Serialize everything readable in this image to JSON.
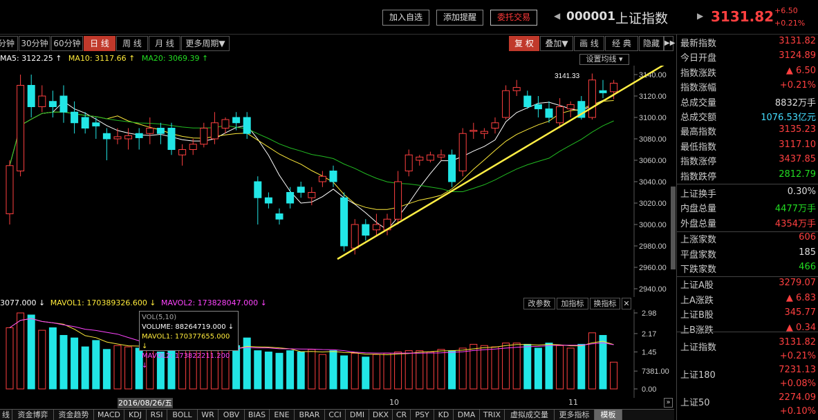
{
  "top": {
    "btn_add": "加入自选",
    "btn_alert": "添加提醒",
    "btn_order": "委托交易",
    "code": "000001",
    "name": "上证指数",
    "price": "3131.82",
    "change": "+6.50",
    "change_pct": "+0.21%"
  },
  "periods": [
    "分钟",
    "30分钟",
    "60分钟",
    "日 线",
    "周 线",
    "月 线",
    "更多周期▼"
  ],
  "right_btns": [
    "复 权",
    "叠加▼",
    "画 线",
    "经 典",
    "隐藏",
    "▶▶"
  ],
  "ma": {
    "ma5": "MA5: 3122.25 ↑",
    "ma10": "MA10: 3117.66 ↑",
    "ma20": "MA20: 3069.39 ↑",
    "set": "设置均线 ▾"
  },
  "vol": {
    "v": "3077.000 ↓",
    "m1": "MAVOL1: 170389326.600 ↓",
    "m2": "MAVOL2: 173828047.000 ↓",
    "btn1": "改参数",
    "btn2": "加指标",
    "btn3": "换指标",
    "close": "✕"
  },
  "tooltip": {
    "l1": "VOL(5,10)",
    "l2": "VOLUME: 88264719.000 ↓",
    "l3": "MAVOL1: 170377655.000 ↓",
    "l4": "MAVOL2: 173822211.200 ↓"
  },
  "price_axis": [
    "3140.00",
    "3120.00",
    "3100.00",
    "3080.00",
    "3060.00",
    "3040.00",
    "3020.00",
    "3000.00",
    "2980.00",
    "2960.00",
    "2940.00"
  ],
  "vol_axis": [
    "2.98",
    "2.17",
    "1.45",
    "7381.00",
    "0.00"
  ],
  "annot": "3141.33",
  "date_flag": "2016/08/26/五",
  "xlabels": [
    "10",
    "11"
  ],
  "tabs": [
    "线",
    "资金博弈",
    "资金趋势",
    "MACD",
    "KDJ",
    "RSI",
    "BOLL",
    "WR",
    "OBV",
    "BIAS",
    "ENE",
    "BRAR",
    "CCI",
    "DMI",
    "DKX",
    "CR",
    "PSY",
    "KD",
    "DMA",
    "TRIX",
    "虚拟成交量",
    "更多指标",
    "模板"
  ],
  "panel": [
    {
      "label": "最新指数",
      "value": "3131.82",
      "color": "#ff4040"
    },
    {
      "label": "今日开盘",
      "value": "3124.89",
      "color": "#ff4040"
    },
    {
      "label": "指数涨跌",
      "value": "▲ 6.50",
      "color": "#ff4040"
    },
    {
      "label": "指数涨幅",
      "value": "+0.21%",
      "color": "#ff4040"
    },
    {
      "label": "总成交量",
      "value": "8832万手",
      "color": "#dddddd"
    },
    {
      "label": "总成交额",
      "value": "1076.53亿元",
      "color": "#44ddff"
    },
    {
      "label": "最高指数",
      "value": "3135.23",
      "color": "#ff4040"
    },
    {
      "label": "最低指数",
      "value": "3117.10",
      "color": "#ff4040"
    },
    {
      "label": "指数涨停",
      "value": "3437.85",
      "color": "#ff4040"
    },
    {
      "label": "指数跌停",
      "value": "2812.79",
      "color": "#22dd22"
    },
    {
      "label": "上证换手",
      "value": "0.30%",
      "color": "#dddddd"
    },
    {
      "label": "内盘总量",
      "value": "4477万手",
      "color": "#22dd22"
    },
    {
      "label": "外盘总量",
      "value": "4354万手",
      "color": "#ff4040"
    },
    {
      "label": "上涨家数",
      "value": "606",
      "color": "#ff4040"
    },
    {
      "label": "平盘家数",
      "value": "185",
      "color": "#dddddd"
    },
    {
      "label": "下跌家数",
      "value": "466",
      "color": "#22dd22"
    },
    {
      "label": "上证A股",
      "value": "3279.07",
      "color": "#ff4040"
    },
    {
      "label": "上A涨跌",
      "value": "▲ 6.83",
      "color": "#ff4040"
    },
    {
      "label": "上证B股",
      "value": "345.77",
      "color": "#ff4040"
    },
    {
      "label": "上B涨跌",
      "value": "▲ 0.34",
      "color": "#ff4040"
    }
  ],
  "panel2": [
    {
      "label": "上证指数",
      "value": "3131.82",
      "pct": "+0.21%"
    },
    {
      "label": "上证180",
      "value": "7231.13",
      "pct": "+0.08%"
    },
    {
      "label": "上证50",
      "value": "2274.09",
      "pct": "+0.10%"
    }
  ],
  "chart_data": {
    "type": "candlestick",
    "candles": [
      [
        3010,
        3055,
        3000,
        3060
      ],
      [
        3050,
        3130,
        3045,
        3140
      ],
      [
        3130,
        3110,
        3100,
        3140
      ],
      [
        3110,
        3120,
        3105,
        3130
      ],
      [
        3115,
        3110,
        3100,
        3125
      ],
      [
        3120,
        3105,
        3095,
        3130
      ],
      [
        3105,
        3095,
        3085,
        3115
      ],
      [
        3100,
        3090,
        3085,
        3105
      ],
      [
        3095,
        3092,
        3080,
        3100
      ],
      [
        3085,
        3080,
        3060,
        3090
      ],
      [
        3080,
        3082,
        3075,
        3090
      ],
      [
        3080,
        3083,
        3070,
        3090
      ],
      [
        3085,
        3081,
        3070,
        3090
      ],
      [
        3085,
        3090,
        3075,
        3100
      ],
      [
        3090,
        3085,
        3075,
        3095
      ],
      [
        3090,
        3070,
        3065,
        3095
      ],
      [
        3065,
        3070,
        3055,
        3075
      ],
      [
        3070,
        3075,
        3065,
        3080
      ],
      [
        3075,
        3090,
        3072,
        3095
      ],
      [
        3080,
        3095,
        3075,
        3105
      ],
      [
        3090,
        3098,
        3085,
        3100
      ],
      [
        3100,
        3095,
        3088,
        3105
      ],
      [
        3100,
        3085,
        3080,
        3105
      ],
      [
        3040,
        3025,
        3000,
        3045
      ],
      [
        3025,
        3020,
        3015,
        3030
      ],
      [
        3010,
        3005,
        3000,
        3015
      ],
      [
        3030,
        3020,
        3015,
        3035
      ],
      [
        3035,
        3030,
        3025,
        3040
      ],
      [
        3025,
        3030,
        3018,
        3035
      ],
      [
        3040,
        3045,
        3035,
        3050
      ],
      [
        3050,
        3040,
        3035,
        3055
      ],
      [
        3025,
        2980,
        2975,
        3030
      ],
      [
        2978,
        3000,
        2972,
        3005
      ],
      [
        3000,
        2990,
        2985,
        3005
      ],
      [
        2995,
        3000,
        2990,
        3010
      ],
      [
        2995,
        3005,
        2990,
        3010
      ],
      [
        3005,
        3040,
        3000,
        3050
      ],
      [
        3050,
        3065,
        3045,
        3070
      ],
      [
        3060,
        3063,
        3055,
        3065
      ],
      [
        3060,
        3065,
        3058,
        3068
      ],
      [
        3063,
        3065,
        3060,
        3070
      ],
      [
        3065,
        3040,
        3035,
        3070
      ],
      [
        3050,
        3085,
        3045,
        3090
      ],
      [
        3087,
        3088,
        3080,
        3095
      ],
      [
        3085,
        3087,
        3080,
        3090
      ],
      [
        3090,
        3095,
        3085,
        3100
      ],
      [
        3100,
        3125,
        3098,
        3130
      ],
      [
        3125,
        3128,
        3120,
        3135
      ],
      [
        3120,
        3110,
        3108,
        3125
      ],
      [
        3112,
        3108,
        3100,
        3120
      ],
      [
        3108,
        3100,
        3095,
        3115
      ],
      [
        3095,
        3110,
        3090,
        3118
      ],
      [
        3108,
        3112,
        3100,
        3115
      ],
      [
        3115,
        3100,
        3098,
        3120
      ],
      [
        3100,
        3135,
        3098,
        3141
      ],
      [
        3125,
        3123,
        3118,
        3135
      ],
      [
        3124,
        3132,
        3117,
        3135
      ]
    ],
    "volumes": [
      2.4,
      2.98,
      2.9,
      2.3,
      2.4,
      2.1,
      2.0,
      1.65,
      1.9,
      1.55,
      1.7,
      1.65,
      1.6,
      1.65,
      1.45,
      1.75,
      1.55,
      1.5,
      1.6,
      1.5,
      1.55,
      1.7,
      2.0,
      1.5,
      1.45,
      1.4,
      1.5,
      1.45,
      1.55,
      1.35,
      1.5,
      1.3,
      1.4,
      1.25,
      1.35,
      1.4,
      1.45,
      1.5,
      1.5,
      1.45,
      1.55,
      1.5,
      1.6,
      1.75,
      1.7,
      1.65,
      1.8,
      1.8,
      1.75,
      1.6,
      1.8,
      1.7,
      1.6,
      1.75,
      2.2,
      2.1,
      1.05
    ]
  }
}
